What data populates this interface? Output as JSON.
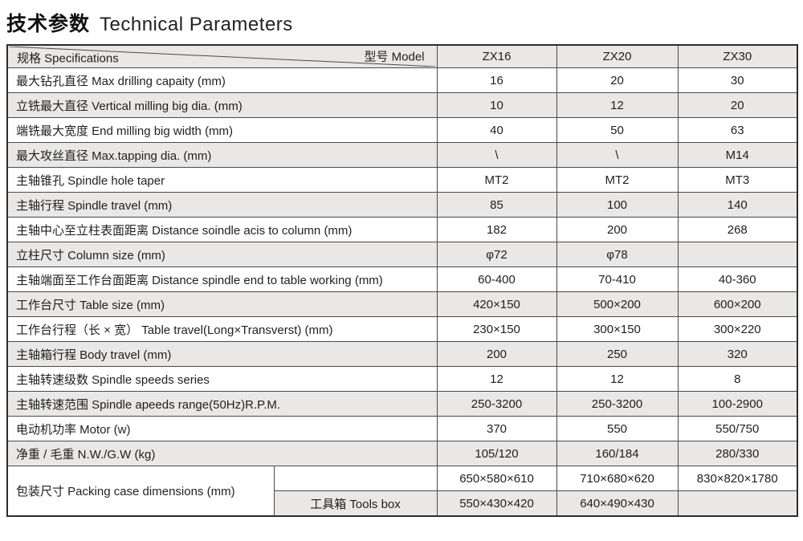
{
  "title": {
    "zh": "技术参数",
    "en": "Technical Parameters"
  },
  "table": {
    "corner": {
      "left": "规格 Specifications",
      "right": "型号  Model"
    },
    "models": [
      "ZX16",
      "ZX20",
      "ZX30"
    ],
    "rows": [
      {
        "label": "最大钻孔直径  Max drilling capaity (mm)",
        "values": [
          "16",
          "20",
          "30"
        ]
      },
      {
        "label": "立铣最大直径  Vertical milling big dia. (mm)",
        "values": [
          "10",
          "12",
          "20"
        ]
      },
      {
        "label": "端铣最大宽度  End milling big width (mm)",
        "values": [
          "40",
          "50",
          "63"
        ]
      },
      {
        "label": "最大攻丝直径  Max.tapping dia. (mm)",
        "values": [
          "\\",
          "\\",
          "M14"
        ]
      },
      {
        "label": "主轴锥孔  Spindle hole taper",
        "values": [
          "MT2",
          "MT2",
          "MT3"
        ]
      },
      {
        "label": "主轴行程  Spindle travel (mm)",
        "values": [
          "85",
          "100",
          "140"
        ]
      },
      {
        "label": "主轴中心至立柱表面距离  Distance soindle acis to column (mm)",
        "values": [
          "182",
          "200",
          "268"
        ]
      },
      {
        "label": "立柱尺寸  Column size (mm)",
        "values": [
          "φ72",
          "φ78",
          ""
        ]
      },
      {
        "label": "主轴端面至工作台面距离  Distance spindle end to table working (mm)",
        "values": [
          "60-400",
          "70-410",
          "40-360"
        ]
      },
      {
        "label": "工作台尺寸  Table size (mm)",
        "values": [
          "420×150",
          "500×200",
          "600×200"
        ]
      },
      {
        "label": "工作台行程（长 × 宽）  Table travel(Long×Transverst) (mm)",
        "values": [
          "230×150",
          "300×150",
          "300×220"
        ]
      },
      {
        "label": "主轴箱行程  Body travel (mm)",
        "values": [
          "200",
          "250",
          "320"
        ]
      },
      {
        "label": "主轴转速级数  Spindle speeds series",
        "values": [
          "12",
          "12",
          "8"
        ]
      },
      {
        "label": "主轴转速范围  Spindle apeeds range(50Hz)R.P.M.",
        "values": [
          "250-3200",
          "250-3200",
          "100-2900"
        ]
      },
      {
        "label": "电动机功率  Motor (w)",
        "values": [
          "370",
          "550",
          "550/750"
        ]
      },
      {
        "label": "净重 / 毛重  N.W./G.W (kg)",
        "values": [
          "105/120",
          "160/184",
          "280/330"
        ]
      }
    ],
    "packing": {
      "label": "包装尺寸  Packing case dimensions (mm)",
      "rows": [
        {
          "sub": "",
          "values": [
            "650×580×610",
            "710×680×620",
            "830×820×1780"
          ]
        },
        {
          "sub": "工具箱 Tools box",
          "values": [
            "550×430×420",
            "640×490×430",
            ""
          ]
        }
      ]
    }
  },
  "colors": {
    "row_alt": "#e9e8e6",
    "border": "#4a4a4a",
    "outer_border": "#2b2b2b"
  }
}
